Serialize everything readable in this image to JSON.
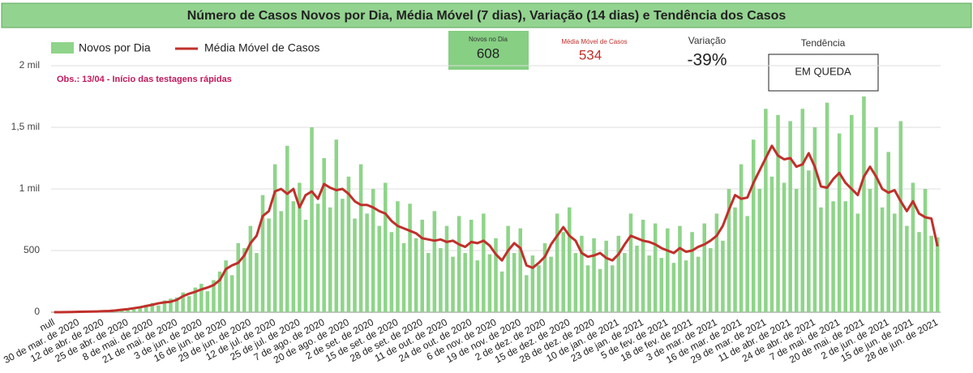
{
  "chart_data": {
    "type": "bar",
    "title": "Número de Casos Novos por Dia, Média Móvel (7 dias), Variação (14 dias) e Tendência dos Casos",
    "annotation": "Obs.: 13/04 - Início das testagens rápidas",
    "scorecards": [
      {
        "title": "Novos no Dia",
        "value": 608
      },
      {
        "title": "Média Móvel de Casos",
        "value": 534
      },
      {
        "title": "Variação",
        "value": -39,
        "value_label": "-39%"
      },
      {
        "title": "Tendência",
        "text": "EM QUEDA"
      }
    ],
    "ylim": [
      0,
      2000
    ],
    "yticks": [
      0,
      500,
      {
        "value": 1000,
        "label": "1 mil"
      },
      {
        "value": 1500,
        "label": "1,5 mil"
      },
      {
        "value": 2000,
        "label": "2 mil"
      }
    ],
    "grid": true,
    "categories": [
      "null",
      null,
      null,
      null,
      "30 de mar. de 2020",
      null,
      null,
      null,
      "12 de abr. de 2020",
      null,
      null,
      null,
      "25 de abr. de 2020",
      null,
      null,
      null,
      "8 de mai. de 2020",
      null,
      null,
      null,
      "21 de mai. de 2020",
      null,
      null,
      null,
      "3 de jun. de 2020",
      null,
      null,
      null,
      "16 de jun. de 2020",
      null,
      null,
      null,
      "29 de jun. de 2020",
      null,
      null,
      null,
      "12 de jul. de 2020",
      null,
      null,
      null,
      "25 de jul. de 2020",
      null,
      null,
      null,
      "7 de ago. de 2020",
      null,
      null,
      null,
      "20 de ago. de 2020",
      null,
      null,
      null,
      "2 de set. de 2020",
      null,
      null,
      null,
      "15 de set. de 2020",
      null,
      null,
      null,
      "28 de set. de 2020",
      null,
      null,
      null,
      "11 de out. de 2020",
      null,
      null,
      null,
      "24 de out. de 2020",
      null,
      null,
      null,
      "6 de nov. de 2020",
      null,
      null,
      null,
      "19 de nov. de 2020",
      null,
      null,
      null,
      "2 de dez. de 2020",
      null,
      null,
      null,
      "15 de dez. de 2020",
      null,
      null,
      null,
      "28 de dez. de 2020",
      null,
      null,
      null,
      "10 de jan. de 2021",
      null,
      null,
      null,
      "23 de jan. de 2021",
      null,
      null,
      null,
      "5 de fev. de 2021",
      null,
      null,
      null,
      "18 de fev. de 2021",
      null,
      null,
      null,
      "3 de mar. de 2021",
      null,
      null,
      null,
      "16 de mar. de 2021",
      null,
      null,
      null,
      "29 de mar. de 2021",
      null,
      null,
      null,
      "11 de abr. de 2021",
      null,
      null,
      null,
      "24 de abr. de 2021",
      null,
      null,
      null,
      "7 de mai. de 2021",
      null,
      null,
      null,
      "20 de mai. de 2021",
      null,
      null,
      null,
      "2 de jun. de 2021",
      null,
      null,
      null,
      "15 de jun. de 2021",
      null,
      null,
      null,
      "28 de jun. de 2021"
    ],
    "series": [
      {
        "name": "Novos por Dia",
        "type": "bar",
        "color": "#8fd48a",
        "values": [
          0,
          0,
          2,
          3,
          4,
          6,
          3,
          9,
          10,
          7,
          18,
          25,
          30,
          22,
          48,
          60,
          75,
          55,
          95,
          110,
          120,
          160,
          130,
          200,
          230,
          170,
          260,
          330,
          420,
          300,
          560,
          520,
          700,
          480,
          950,
          760,
          1200,
          820,
          1350,
          900,
          1050,
          750,
          1500,
          880,
          1250,
          850,
          1400,
          920,
          1100,
          760,
          1200,
          800,
          1000,
          700,
          1050,
          650,
          900,
          560,
          880,
          600,
          750,
          480,
          820,
          520,
          700,
          450,
          780,
          480,
          750,
          420,
          800,
          470,
          600,
          330,
          700,
          480,
          680,
          300,
          460,
          380,
          560,
          450,
          800,
          650,
          850,
          480,
          620,
          380,
          600,
          350,
          580,
          380,
          620,
          480,
          800,
          540,
          750,
          460,
          720,
          440,
          680,
          400,
          700,
          420,
          650,
          450,
          720,
          520,
          800,
          580,
          1000,
          850,
          1200,
          780,
          1400,
          1000,
          1650,
          1100,
          1600,
          1050,
          1550,
          1000,
          1650,
          1150,
          1500,
          850,
          1700,
          900,
          1450,
          900,
          1600,
          800,
          1750,
          1000,
          1500,
          850,
          1300,
          800,
          1550,
          700,
          1050,
          650,
          1000,
          620,
          608
        ]
      },
      {
        "name": "Média Móvel de Casos",
        "type": "line",
        "color": "#c0302b",
        "values": [
          0,
          0,
          1,
          2,
          3,
          4,
          5,
          6,
          8,
          10,
          14,
          20,
          25,
          32,
          40,
          50,
          60,
          72,
          80,
          85,
          100,
          130,
          150,
          165,
          185,
          200,
          220,
          260,
          350,
          380,
          400,
          460,
          560,
          620,
          780,
          820,
          980,
          1000,
          960,
          1000,
          850,
          950,
          980,
          920,
          1040,
          1010,
          990,
          1000,
          960,
          900,
          870,
          870,
          850,
          820,
          800,
          740,
          700,
          680,
          660,
          640,
          600,
          590,
          580,
          590,
          570,
          580,
          550,
          530,
          570,
          560,
          580,
          540,
          470,
          420,
          500,
          560,
          520,
          380,
          360,
          400,
          450,
          550,
          620,
          690,
          620,
          580,
          480,
          450,
          460,
          480,
          440,
          420,
          470,
          550,
          620,
          600,
          580,
          570,
          550,
          520,
          500,
          480,
          520,
          490,
          500,
          530,
          550,
          580,
          620,
          700,
          830,
          950,
          920,
          930,
          1050,
          1150,
          1250,
          1350,
          1270,
          1240,
          1250,
          1180,
          1200,
          1290,
          1180,
          1020,
          1010,
          1080,
          1130,
          1050,
          1000,
          950,
          1100,
          1180,
          1100,
          1000,
          970,
          990,
          900,
          820,
          900,
          800,
          770,
          760,
          534
        ]
      }
    ]
  }
}
